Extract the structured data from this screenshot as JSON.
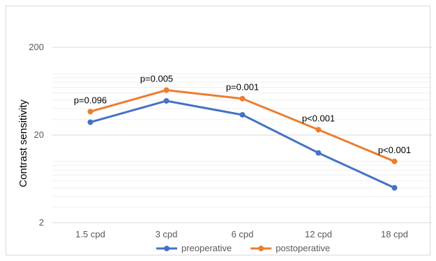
{
  "chart_data": {
    "type": "line",
    "categories": [
      "1.5 cpd",
      "3 cpd",
      "6 cpd",
      "12 cpd",
      "18 cpd"
    ],
    "ylabel": "Contrast sensitivity",
    "yscale": "log",
    "ylim": [
      2,
      200
    ],
    "yticks": [
      {
        "value": 2,
        "label": "2"
      },
      {
        "value": 20,
        "label": "20"
      },
      {
        "value": 200,
        "label": "200"
      }
    ],
    "series": [
      {
        "name": "preoperative",
        "color": "#4472C4",
        "values": [
          28,
          49,
          34,
          12.5,
          5
        ]
      },
      {
        "name": "postoperative",
        "color": "#ED7D31",
        "values": [
          37,
          65,
          52,
          23,
          10
        ]
      }
    ],
    "annotations": [
      "p=0.096",
      "p=0.005",
      "p=0.001",
      "p<0.001",
      "p<0.001"
    ],
    "legend_position": "bottom"
  }
}
